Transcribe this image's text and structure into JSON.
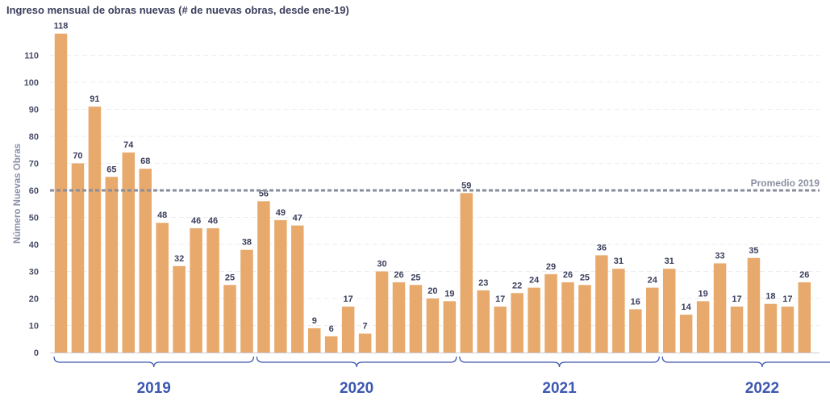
{
  "chart_data": {
    "type": "bar",
    "title": "Ingreso mensual de obras nuevas (# de nuevas obras, desde ene-19)",
    "ylabel": "Número Nuevas Obras",
    "ylim": [
      0,
      120
    ],
    "yticks": [
      0,
      10,
      20,
      30,
      40,
      50,
      60,
      70,
      80,
      90,
      100,
      110
    ],
    "grid": true,
    "bar_color": "#e8a96c",
    "year_color": "#3d58b0",
    "groups": [
      {
        "label": "2019",
        "values": [
          118,
          70,
          91,
          65,
          74,
          68,
          48,
          32,
          46,
          46,
          25,
          38
        ]
      },
      {
        "label": "2020",
        "values": [
          56,
          49,
          47,
          9,
          6,
          17,
          7,
          30,
          26,
          25,
          20,
          19
        ]
      },
      {
        "label": "2021",
        "values": [
          59,
          23,
          17,
          22,
          24,
          29,
          26,
          25,
          36,
          31,
          16,
          24
        ]
      },
      {
        "label": "2022",
        "values": [
          31,
          14,
          19,
          33,
          17,
          35,
          18,
          17,
          26
        ]
      }
    ],
    "reference_line": {
      "label": "Promedio 2019",
      "value": 60
    }
  }
}
